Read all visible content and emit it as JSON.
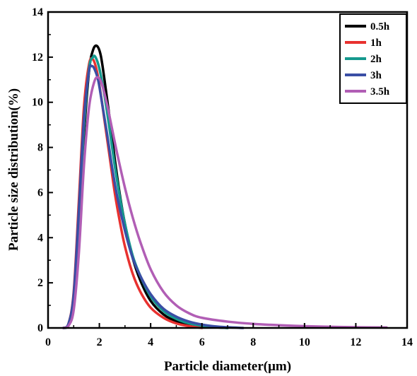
{
  "chart_data": {
    "type": "line",
    "title": "",
    "xlabel": "Particle diameter(μm)",
    "ylabel": "Particle size distribution(%)",
    "xlim": [
      0,
      14
    ],
    "ylim": [
      0,
      14
    ],
    "xticks": [
      "0",
      "2",
      "4",
      "6",
      "8",
      "10",
      "12",
      "14"
    ],
    "yticks": [
      "0",
      "2",
      "4",
      "6",
      "8",
      "10",
      "12",
      "14"
    ],
    "grid": false,
    "legend_position": "top-right",
    "series": [
      {
        "name": "0.5h",
        "color": "#000000",
        "x": [
          0.6,
          0.8,
          1.0,
          1.2,
          1.4,
          1.6,
          1.75,
          1.9,
          2.05,
          2.2,
          2.4,
          2.6,
          2.8,
          3.0,
          3.3,
          3.6,
          4.0,
          4.5,
          5.0,
          5.5,
          6.0,
          6.5,
          7.0
        ],
        "y": [
          0.0,
          0.15,
          1.2,
          4.3,
          8.5,
          11.4,
          12.3,
          12.5,
          12.1,
          11.0,
          9.3,
          7.5,
          5.9,
          4.6,
          3.1,
          2.1,
          1.2,
          0.6,
          0.3,
          0.15,
          0.07,
          0.03,
          0.0
        ]
      },
      {
        "name": "1h",
        "color": "#e8312f",
        "x": [
          0.6,
          0.8,
          1.0,
          1.2,
          1.4,
          1.6,
          1.75,
          1.9,
          2.05,
          2.2,
          2.4,
          2.6,
          2.8,
          3.0,
          3.3,
          3.6,
          4.0,
          4.5,
          5.0,
          5.5,
          6.0
        ],
        "y": [
          0.0,
          0.2,
          1.6,
          5.6,
          9.8,
          11.7,
          11.9,
          11.4,
          10.4,
          9.2,
          7.6,
          6.0,
          4.7,
          3.6,
          2.4,
          1.6,
          0.9,
          0.45,
          0.2,
          0.08,
          0.0
        ]
      },
      {
        "name": "2h",
        "color": "#15998e",
        "x": [
          0.6,
          0.8,
          1.0,
          1.2,
          1.4,
          1.6,
          1.75,
          1.85,
          2.0,
          2.2,
          2.4,
          2.6,
          2.8,
          3.0,
          3.3,
          3.6,
          4.0,
          4.5,
          5.0,
          5.5,
          6.0,
          6.5,
          7.0
        ],
        "y": [
          0.0,
          0.15,
          1.3,
          4.8,
          8.9,
          11.5,
          12.0,
          12.0,
          11.5,
          10.3,
          8.8,
          7.2,
          5.8,
          4.6,
          3.2,
          2.3,
          1.4,
          0.75,
          0.4,
          0.2,
          0.1,
          0.04,
          0.0
        ]
      },
      {
        "name": "3h",
        "color": "#3a4ea5",
        "x": [
          0.6,
          0.8,
          1.0,
          1.2,
          1.4,
          1.6,
          1.7,
          1.8,
          1.95,
          2.1,
          2.3,
          2.5,
          2.7,
          3.0,
          3.3,
          3.6,
          4.0,
          4.5,
          5.0,
          5.5,
          6.0,
          6.5,
          7.0,
          7.6
        ],
        "y": [
          0.0,
          0.2,
          1.5,
          5.2,
          9.3,
          11.4,
          11.6,
          11.5,
          11.0,
          10.0,
          8.6,
          7.1,
          5.8,
          4.3,
          3.1,
          2.3,
          1.5,
          0.85,
          0.5,
          0.28,
          0.15,
          0.07,
          0.03,
          0.0
        ]
      },
      {
        "name": "3.5h",
        "color": "#b15eb5",
        "x": [
          0.6,
          0.8,
          1.0,
          1.2,
          1.4,
          1.6,
          1.8,
          1.95,
          2.1,
          2.3,
          2.5,
          2.7,
          3.0,
          3.3,
          3.6,
          4.0,
          4.5,
          5.0,
          5.5,
          6.0,
          7.0,
          8.0,
          9.0,
          10.0,
          11.0,
          12.0,
          13.2
        ],
        "y": [
          0.0,
          0.1,
          0.8,
          3.3,
          7.2,
          9.8,
          10.9,
          11.1,
          10.8,
          9.9,
          8.8,
          7.7,
          6.2,
          4.9,
          3.8,
          2.6,
          1.6,
          1.0,
          0.65,
          0.45,
          0.28,
          0.18,
          0.12,
          0.08,
          0.05,
          0.03,
          0.02
        ]
      }
    ]
  }
}
